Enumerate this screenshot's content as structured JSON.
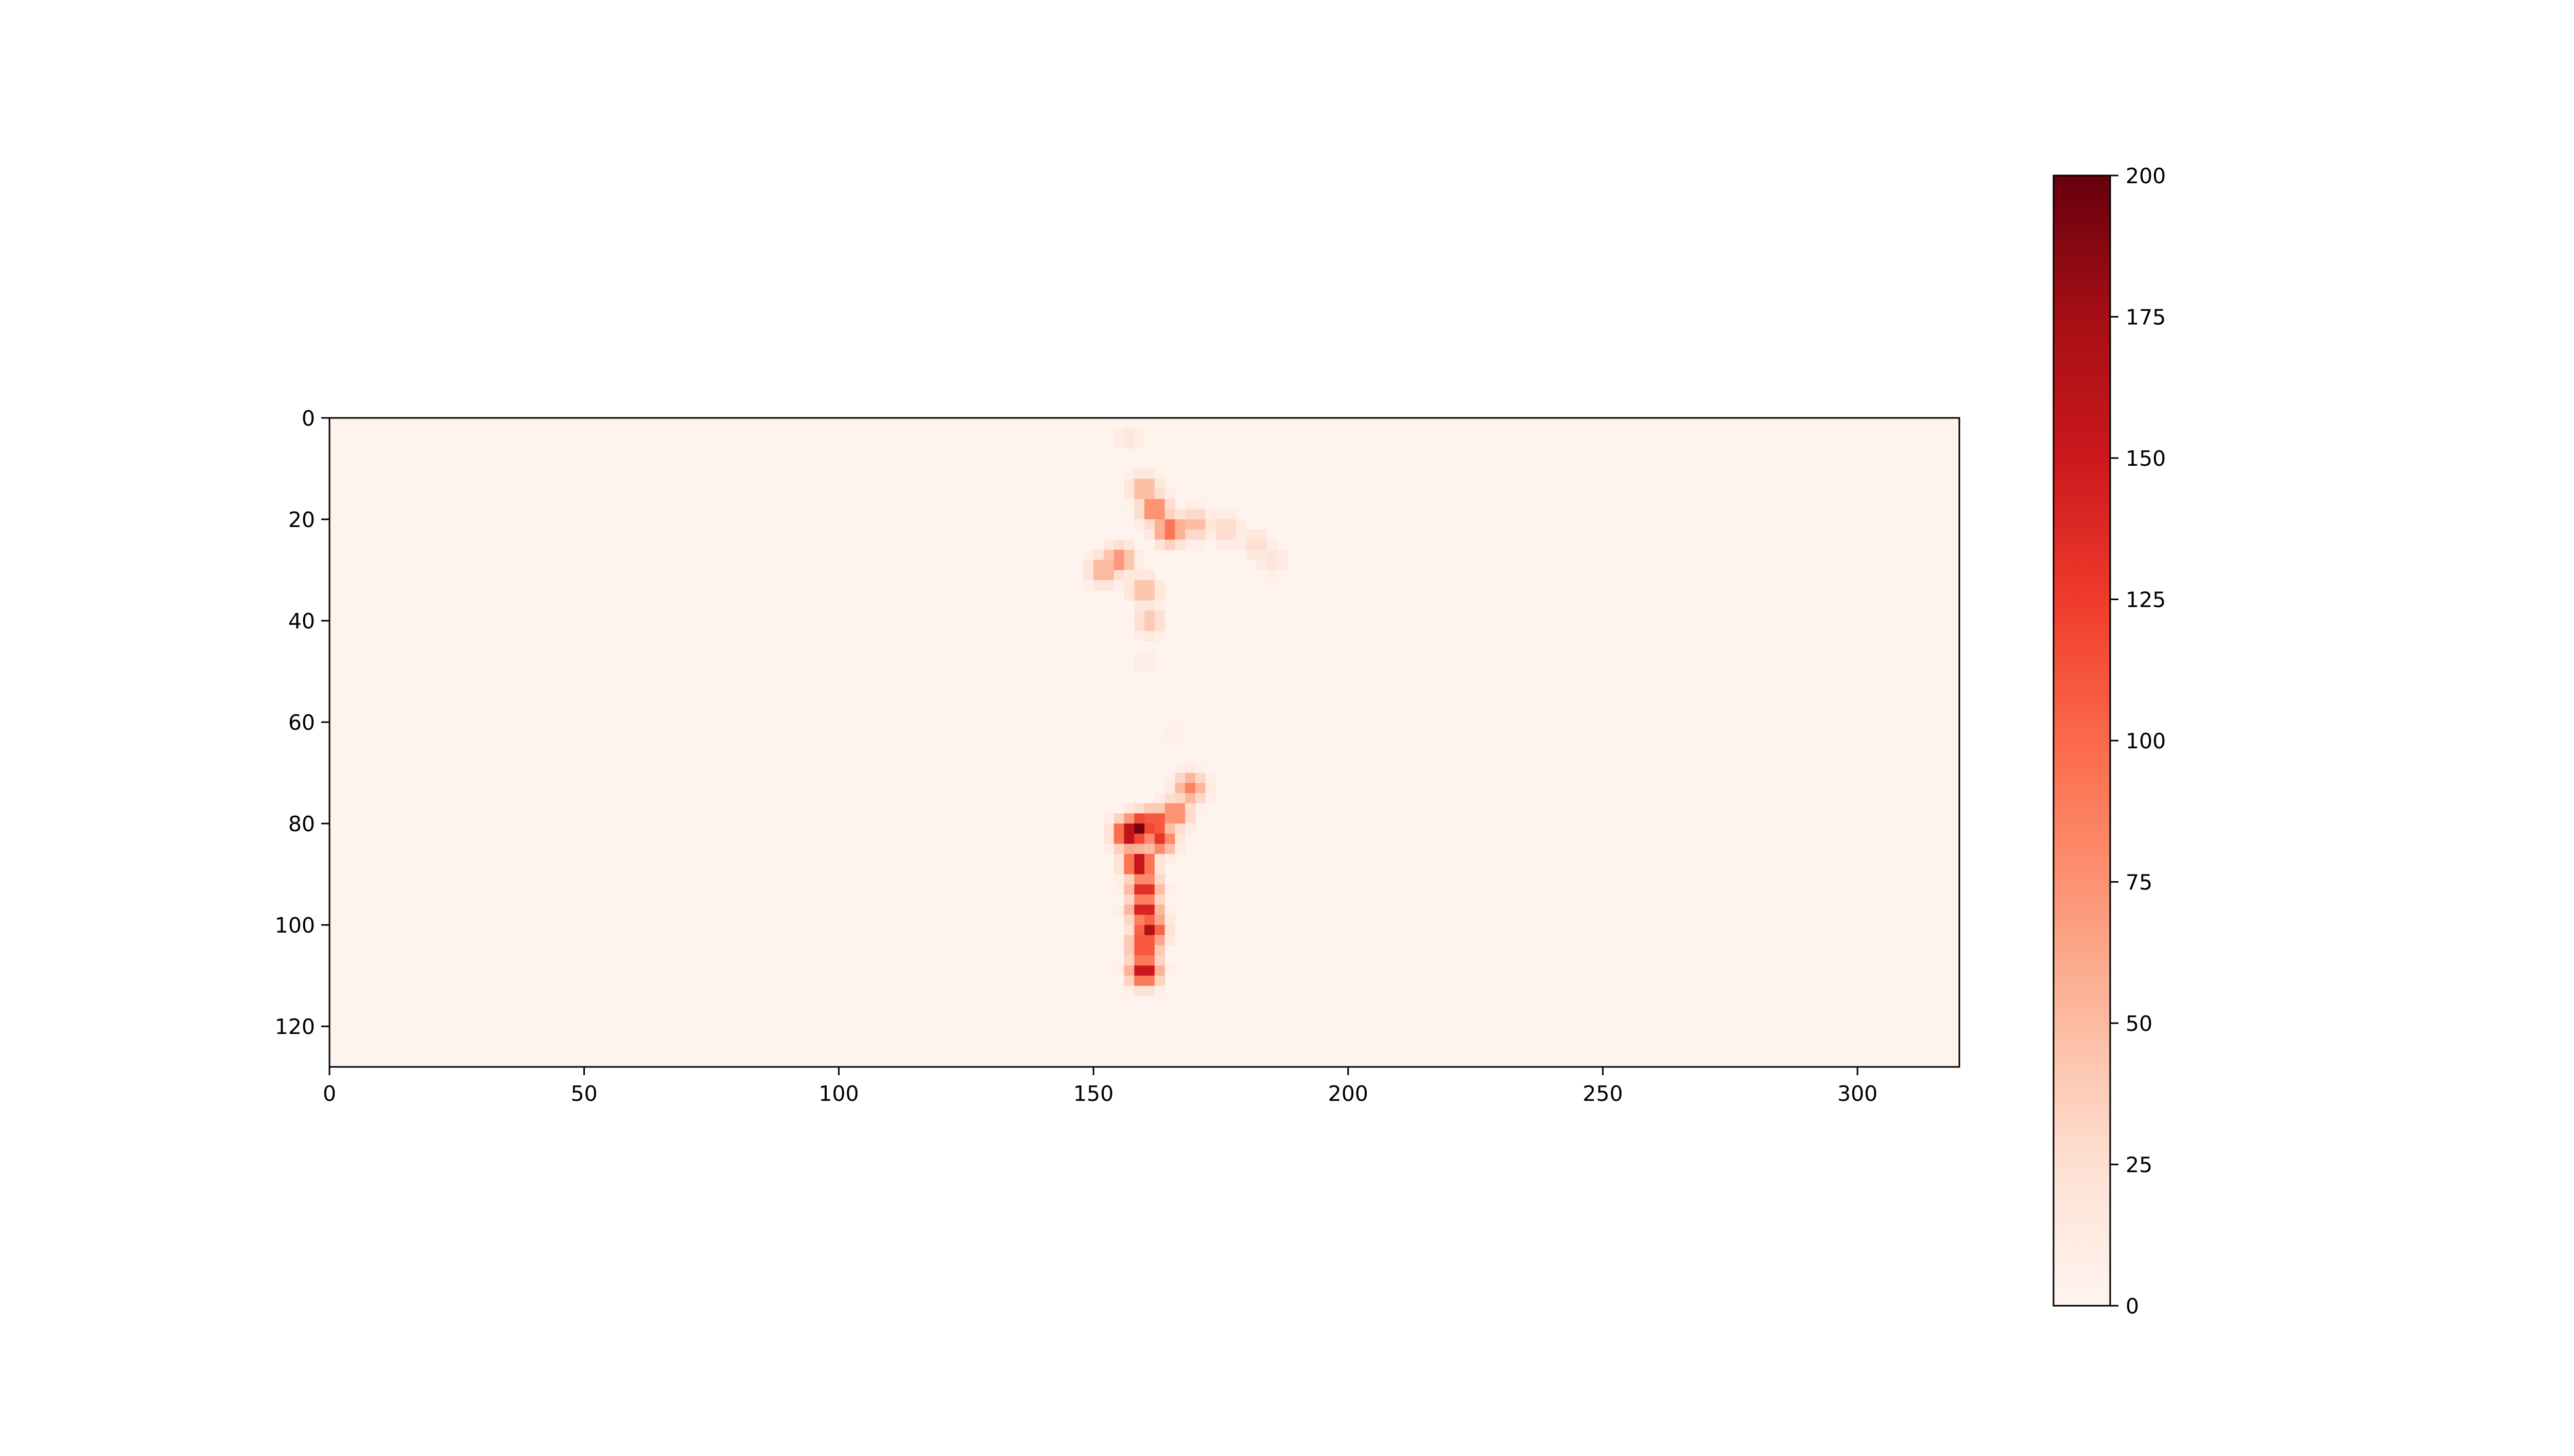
{
  "chart_data": {
    "type": "heatmap",
    "colormap": "Reds",
    "colors": [
      "#fff5f0",
      "#fee0d2",
      "#fcbba1",
      "#fc9272",
      "#fb6a4a",
      "#ef3b2c",
      "#cb181d",
      "#a50f15",
      "#67000d"
    ],
    "x_range": [
      0,
      320
    ],
    "y_range": [
      0,
      128
    ],
    "y_inverted": true,
    "x_ticks": [
      {
        "value": 0,
        "label": "0"
      },
      {
        "value": 50,
        "label": "50"
      },
      {
        "value": 100,
        "label": "100"
      },
      {
        "value": 150,
        "label": "150"
      },
      {
        "value": 200,
        "label": "200"
      },
      {
        "value": 250,
        "label": "250"
      },
      {
        "value": 300,
        "label": "300"
      }
    ],
    "y_ticks": [
      {
        "value": 0,
        "label": "0"
      },
      {
        "value": 20,
        "label": "20"
      },
      {
        "value": 40,
        "label": "40"
      },
      {
        "value": 60,
        "label": "60"
      },
      {
        "value": 80,
        "label": "80"
      },
      {
        "value": 100,
        "label": "100"
      },
      {
        "value": 120,
        "label": "120"
      }
    ],
    "grid": false,
    "colorbar": {
      "range": [
        0,
        200
      ],
      "ticks": [
        {
          "value": 0,
          "label": "0"
        },
        {
          "value": 25,
          "label": "25"
        },
        {
          "value": 50,
          "label": "50"
        },
        {
          "value": 75,
          "label": "75"
        },
        {
          "value": 100,
          "label": "100"
        },
        {
          "value": 125,
          "label": "125"
        },
        {
          "value": 150,
          "label": "150"
        },
        {
          "value": 175,
          "label": "175"
        },
        {
          "value": 200,
          "label": "200"
        }
      ]
    },
    "background_value": 2,
    "blobs": [
      {
        "x": 162,
        "y": 18,
        "value": 95
      },
      {
        "x": 165,
        "y": 22,
        "value": 105
      },
      {
        "x": 160,
        "y": 14,
        "value": 60
      },
      {
        "x": 157,
        "y": 4,
        "value": 18
      },
      {
        "x": 155,
        "y": 28,
        "value": 80
      },
      {
        "x": 152,
        "y": 30,
        "value": 65
      },
      {
        "x": 170,
        "y": 21,
        "value": 55
      },
      {
        "x": 176,
        "y": 22,
        "value": 35
      },
      {
        "x": 182,
        "y": 25,
        "value": 28
      },
      {
        "x": 185,
        "y": 28,
        "value": 22
      },
      {
        "x": 160,
        "y": 34,
        "value": 55
      },
      {
        "x": 161,
        "y": 40,
        "value": 45
      },
      {
        "x": 160,
        "y": 48,
        "value": 10
      },
      {
        "x": 166,
        "y": 62,
        "value": 8
      },
      {
        "x": 169,
        "y": 73,
        "value": 85
      },
      {
        "x": 166,
        "y": 78,
        "value": 95
      },
      {
        "x": 162,
        "y": 80,
        "value": 140
      },
      {
        "x": 159,
        "y": 81,
        "value": 195
      },
      {
        "x": 157,
        "y": 82,
        "value": 180
      },
      {
        "x": 163,
        "y": 83,
        "value": 130
      },
      {
        "x": 159,
        "y": 88,
        "value": 175
      },
      {
        "x": 160,
        "y": 93,
        "value": 150
      },
      {
        "x": 160,
        "y": 97,
        "value": 160
      },
      {
        "x": 161,
        "y": 101,
        "value": 170
      },
      {
        "x": 160,
        "y": 104,
        "value": 140
      },
      {
        "x": 160,
        "y": 109,
        "value": 170
      }
    ]
  }
}
